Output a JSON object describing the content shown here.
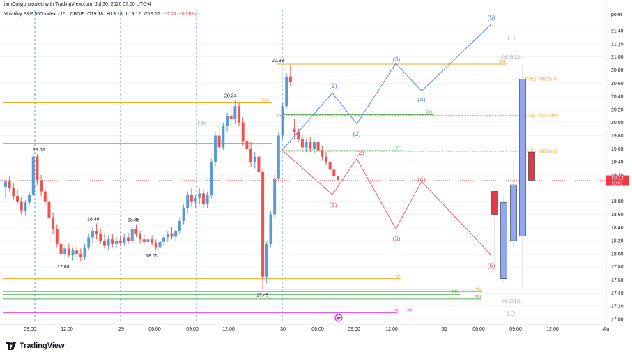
{
  "header": {
    "created_by": "iamCoryjp created with TradingView.com, Jul 30, 2026 07:50 UTC-4",
    "symbol": "Volatility S&P 500 Index · 15 · CBOE",
    "o_label": "O",
    "o": "19.18",
    "h_label": "H",
    "h": "19.18",
    "l_label": "L",
    "l": "19.12",
    "c_label": "C",
    "c": "19.12",
    "change": "−0.05 (−0.26%)"
  },
  "brand": "TradingView",
  "colors": {
    "up": "#5b9bd5",
    "down": "#ef5350",
    "orange": "#f5a623",
    "green": "#4caf50",
    "pink": "#e040fb",
    "blue_path": "#5b8def",
    "red_path": "#ef5a6f",
    "grid": "#f0f3fa"
  },
  "chart_data": {
    "type": "candlestick",
    "y_axis": {
      "label": "point",
      "ticks": [
        "21.40",
        "21.20",
        "21.00",
        "20.80",
        "20.60",
        "20.40",
        "20.20",
        "20.00",
        "19.80",
        "19.60",
        "19.40",
        "19.20",
        "18.80",
        "18.60",
        "18.40",
        "18.20",
        "18.00",
        "17.80",
        "17.60",
        "17.40",
        "17.20",
        "17.00"
      ],
      "range": [
        17.0,
        21.5
      ],
      "current_price": "19.12",
      "current_time": "09:01"
    },
    "x_axis": {
      "ticks": [
        "09:00",
        "12:00",
        "29",
        "06:00",
        "09:00",
        "12:00",
        "30",
        "06:00",
        "09:00",
        "12:00",
        "31",
        "06:00",
        "09:00",
        "12:00",
        "Au"
      ]
    },
    "price_labels": [
      {
        "text": "19.52",
        "price": 19.52
      },
      {
        "text": "18.46",
        "price": 18.46
      },
      {
        "text": "17.88",
        "price": 17.88
      },
      {
        "text": "18.45",
        "price": 18.45
      },
      {
        "text": "18.05",
        "price": 18.05
      },
      {
        "text": "20.34",
        "price": 20.34
      },
      {
        "text": "17.45",
        "price": 17.45
      },
      {
        "text": "20.88",
        "price": 20.88
      }
    ],
    "levels": [
      {
        "text": "PWH",
        "price": 20.3
      },
      {
        "text": "PDH",
        "price": 19.95
      },
      {
        "text": "WH",
        "price": 20.89
      },
      {
        "text": "DH",
        "price": 20.12
      },
      {
        "text": "D",
        "price": 19.57
      },
      {
        "text": "W",
        "price": 17.62
      },
      {
        "text": "WL",
        "price": 17.42
      },
      {
        "text": "PDL",
        "price": 17.38
      },
      {
        "text": "PDL",
        "price": 17.31
      },
      {
        "text": "M",
        "price": 17.1
      },
      {
        "text": "3M",
        "price": 17.1
      }
    ],
    "ndog_labels": [
      {
        "text": "20.66) · NDOG(H)",
        "price": 20.66
      },
      {
        "text": "20.11) · NDOG(M)",
        "price": 20.11
      },
      {
        "text": "19.56) · NDOG(L)",
        "price": 19.56
      }
    ],
    "htf": {
      "label_top": "1D",
      "label_bottom": "1D",
      "time_top": "(08:25:13)",
      "time_bottom": "(08:25:13)",
      "candles": [
        {
          "o": 18.95,
          "h": 19.05,
          "l": 17.7,
          "c": 18.6
        },
        {
          "o": 17.62,
          "h": 18.9,
          "l": 17.55,
          "c": 18.78
        },
        {
          "o": 18.2,
          "h": 19.45,
          "l": 18.1,
          "c": 19.05
        },
        {
          "o": 18.27,
          "h": 20.88,
          "l": 17.48,
          "c": 20.66
        },
        {
          "o": 19.55,
          "h": 19.62,
          "l": 19.1,
          "c": 19.12
        }
      ]
    },
    "candles": [
      {
        "o": 19.02,
        "h": 19.15,
        "l": 18.85,
        "c": 19.1
      },
      {
        "o": 19.1,
        "h": 19.18,
        "l": 18.95,
        "c": 19.0
      },
      {
        "o": 19.0,
        "h": 19.08,
        "l": 18.82,
        "c": 18.88
      },
      {
        "o": 18.88,
        "h": 18.98,
        "l": 18.75,
        "c": 18.8
      },
      {
        "o": 18.8,
        "h": 18.86,
        "l": 18.6,
        "c": 18.66
      },
      {
        "o": 18.66,
        "h": 18.82,
        "l": 18.58,
        "c": 18.78
      },
      {
        "o": 18.78,
        "h": 18.95,
        "l": 18.72,
        "c": 18.9
      },
      {
        "o": 18.9,
        "h": 19.52,
        "l": 18.88,
        "c": 19.48
      },
      {
        "o": 19.48,
        "h": 19.52,
        "l": 19.05,
        "c": 19.12
      },
      {
        "o": 19.12,
        "h": 19.2,
        "l": 18.88,
        "c": 18.95
      },
      {
        "o": 18.95,
        "h": 19.02,
        "l": 18.72,
        "c": 18.8
      },
      {
        "o": 18.8,
        "h": 18.85,
        "l": 18.48,
        "c": 18.55
      },
      {
        "o": 18.55,
        "h": 18.62,
        "l": 18.3,
        "c": 18.38
      },
      {
        "o": 18.38,
        "h": 18.45,
        "l": 18.1,
        "c": 18.15
      },
      {
        "o": 18.15,
        "h": 18.2,
        "l": 17.95,
        "c": 18.0
      },
      {
        "o": 18.0,
        "h": 18.12,
        "l": 17.92,
        "c": 18.08
      },
      {
        "o": 18.08,
        "h": 18.15,
        "l": 17.95,
        "c": 17.98
      },
      {
        "o": 17.98,
        "h": 18.1,
        "l": 17.9,
        "c": 18.05
      },
      {
        "o": 18.05,
        "h": 18.12,
        "l": 17.95,
        "c": 18.0
      },
      {
        "o": 18.0,
        "h": 18.08,
        "l": 17.88,
        "c": 17.95
      },
      {
        "o": 17.95,
        "h": 18.15,
        "l": 17.9,
        "c": 18.1
      },
      {
        "o": 18.1,
        "h": 18.3,
        "l": 18.05,
        "c": 18.25
      },
      {
        "o": 18.25,
        "h": 18.4,
        "l": 18.15,
        "c": 18.35
      },
      {
        "o": 18.35,
        "h": 18.46,
        "l": 18.22,
        "c": 18.3
      },
      {
        "o": 18.3,
        "h": 18.38,
        "l": 18.15,
        "c": 18.2
      },
      {
        "o": 18.2,
        "h": 18.3,
        "l": 18.08,
        "c": 18.12
      },
      {
        "o": 18.12,
        "h": 18.28,
        "l": 18.05,
        "c": 18.22
      },
      {
        "o": 18.22,
        "h": 18.3,
        "l": 18.1,
        "c": 18.15
      },
      {
        "o": 18.15,
        "h": 18.25,
        "l": 18.08,
        "c": 18.2
      },
      {
        "o": 18.2,
        "h": 18.28,
        "l": 18.12,
        "c": 18.16
      },
      {
        "o": 18.16,
        "h": 18.3,
        "l": 18.12,
        "c": 18.25
      },
      {
        "o": 18.25,
        "h": 18.32,
        "l": 18.15,
        "c": 18.2
      },
      {
        "o": 18.2,
        "h": 18.45,
        "l": 18.15,
        "c": 18.38
      },
      {
        "o": 18.38,
        "h": 18.45,
        "l": 18.25,
        "c": 18.3
      },
      {
        "o": 18.3,
        "h": 18.35,
        "l": 18.15,
        "c": 18.22
      },
      {
        "o": 18.22,
        "h": 18.3,
        "l": 18.12,
        "c": 18.18
      },
      {
        "o": 18.18,
        "h": 18.26,
        "l": 18.1,
        "c": 18.22
      },
      {
        "o": 18.22,
        "h": 18.28,
        "l": 18.12,
        "c": 18.16
      },
      {
        "o": 18.16,
        "h": 18.22,
        "l": 18.05,
        "c": 18.1
      },
      {
        "o": 18.1,
        "h": 18.22,
        "l": 18.05,
        "c": 18.18
      },
      {
        "o": 18.18,
        "h": 18.3,
        "l": 18.12,
        "c": 18.25
      },
      {
        "o": 18.25,
        "h": 18.35,
        "l": 18.18,
        "c": 18.3
      },
      {
        "o": 18.3,
        "h": 18.4,
        "l": 18.22,
        "c": 18.26
      },
      {
        "o": 18.26,
        "h": 18.38,
        "l": 18.2,
        "c": 18.34
      },
      {
        "o": 18.34,
        "h": 18.55,
        "l": 18.3,
        "c": 18.5
      },
      {
        "o": 18.5,
        "h": 18.75,
        "l": 18.45,
        "c": 18.7
      },
      {
        "o": 18.7,
        "h": 18.95,
        "l": 18.62,
        "c": 18.9
      },
      {
        "o": 18.9,
        "h": 19.0,
        "l": 18.72,
        "c": 18.8
      },
      {
        "o": 18.8,
        "h": 18.9,
        "l": 18.7,
        "c": 18.85
      },
      {
        "o": 18.85,
        "h": 19.0,
        "l": 18.75,
        "c": 18.92
      },
      {
        "o": 18.92,
        "h": 18.98,
        "l": 18.7,
        "c": 18.76
      },
      {
        "o": 18.76,
        "h": 18.95,
        "l": 18.7,
        "c": 18.9
      },
      {
        "o": 18.9,
        "h": 19.45,
        "l": 18.85,
        "c": 19.4
      },
      {
        "o": 19.4,
        "h": 19.85,
        "l": 19.32,
        "c": 19.8
      },
      {
        "o": 19.8,
        "h": 19.95,
        "l": 19.55,
        "c": 19.62
      },
      {
        "o": 19.62,
        "h": 20.0,
        "l": 19.58,
        "c": 19.95
      },
      {
        "o": 19.95,
        "h": 20.15,
        "l": 19.85,
        "c": 20.1
      },
      {
        "o": 20.1,
        "h": 20.25,
        "l": 19.95,
        "c": 20.05
      },
      {
        "o": 20.05,
        "h": 20.34,
        "l": 19.98,
        "c": 20.25
      },
      {
        "o": 20.25,
        "h": 20.3,
        "l": 19.95,
        "c": 20.0
      },
      {
        "o": 20.0,
        "h": 20.08,
        "l": 19.65,
        "c": 19.72
      },
      {
        "o": 19.72,
        "h": 19.85,
        "l": 19.55,
        "c": 19.6
      },
      {
        "o": 19.6,
        "h": 19.7,
        "l": 19.32,
        "c": 19.4
      },
      {
        "o": 19.4,
        "h": 19.55,
        "l": 19.3,
        "c": 19.48
      },
      {
        "o": 19.48,
        "h": 19.55,
        "l": 19.2,
        "c": 19.25
      },
      {
        "o": 19.25,
        "h": 19.3,
        "l": 17.45,
        "c": 17.65
      },
      {
        "o": 17.65,
        "h": 18.2,
        "l": 17.55,
        "c": 18.15
      },
      {
        "o": 18.15,
        "h": 18.65,
        "l": 18.1,
        "c": 18.6
      },
      {
        "o": 18.6,
        "h": 19.2,
        "l": 18.55,
        "c": 19.15
      },
      {
        "o": 19.15,
        "h": 19.85,
        "l": 19.1,
        "c": 19.8
      },
      {
        "o": 19.8,
        "h": 20.3,
        "l": 19.75,
        "c": 20.25
      },
      {
        "o": 20.25,
        "h": 20.75,
        "l": 20.2,
        "c": 20.7
      },
      {
        "o": 20.7,
        "h": 20.88,
        "l": 20.55,
        "c": 20.62
      },
      {
        "o": 19.9,
        "h": 20.05,
        "l": 19.75,
        "c": 19.85
      },
      {
        "o": 19.85,
        "h": 19.92,
        "l": 19.7,
        "c": 19.75
      },
      {
        "o": 19.75,
        "h": 19.82,
        "l": 19.58,
        "c": 19.62
      },
      {
        "o": 19.62,
        "h": 19.75,
        "l": 19.55,
        "c": 19.7
      },
      {
        "o": 19.7,
        "h": 19.78,
        "l": 19.55,
        "c": 19.6
      },
      {
        "o": 19.6,
        "h": 19.75,
        "l": 19.52,
        "c": 19.7
      },
      {
        "o": 19.7,
        "h": 19.75,
        "l": 19.55,
        "c": 19.58
      },
      {
        "o": 19.58,
        "h": 19.65,
        "l": 19.42,
        "c": 19.48
      },
      {
        "o": 19.48,
        "h": 19.55,
        "l": 19.35,
        "c": 19.4
      },
      {
        "o": 19.4,
        "h": 19.45,
        "l": 19.22,
        "c": 19.28
      },
      {
        "o": 19.28,
        "h": 19.3,
        "l": 19.12,
        "c": 19.18
      },
      {
        "o": 19.18,
        "h": 19.18,
        "l": 19.12,
        "c": 19.12
      }
    ],
    "projections": {
      "blue": [
        {
          "label": "(1)",
          "price": 20.45
        },
        {
          "label": "(2)",
          "price": 19.98
        },
        {
          "label": "(3)",
          "price": 20.9
        },
        {
          "label": "(4)",
          "price": 20.48
        },
        {
          "label": "(5)",
          "price": 21.5
        }
      ],
      "red": [
        {
          "label": "(1)",
          "price": 18.9
        },
        {
          "label": "(2)",
          "price": 19.45
        },
        {
          "label": "(3)",
          "price": 18.38
        },
        {
          "label": "(4)",
          "price": 19.1
        },
        {
          "label": "(5)",
          "price": 17.98
        }
      ]
    }
  }
}
